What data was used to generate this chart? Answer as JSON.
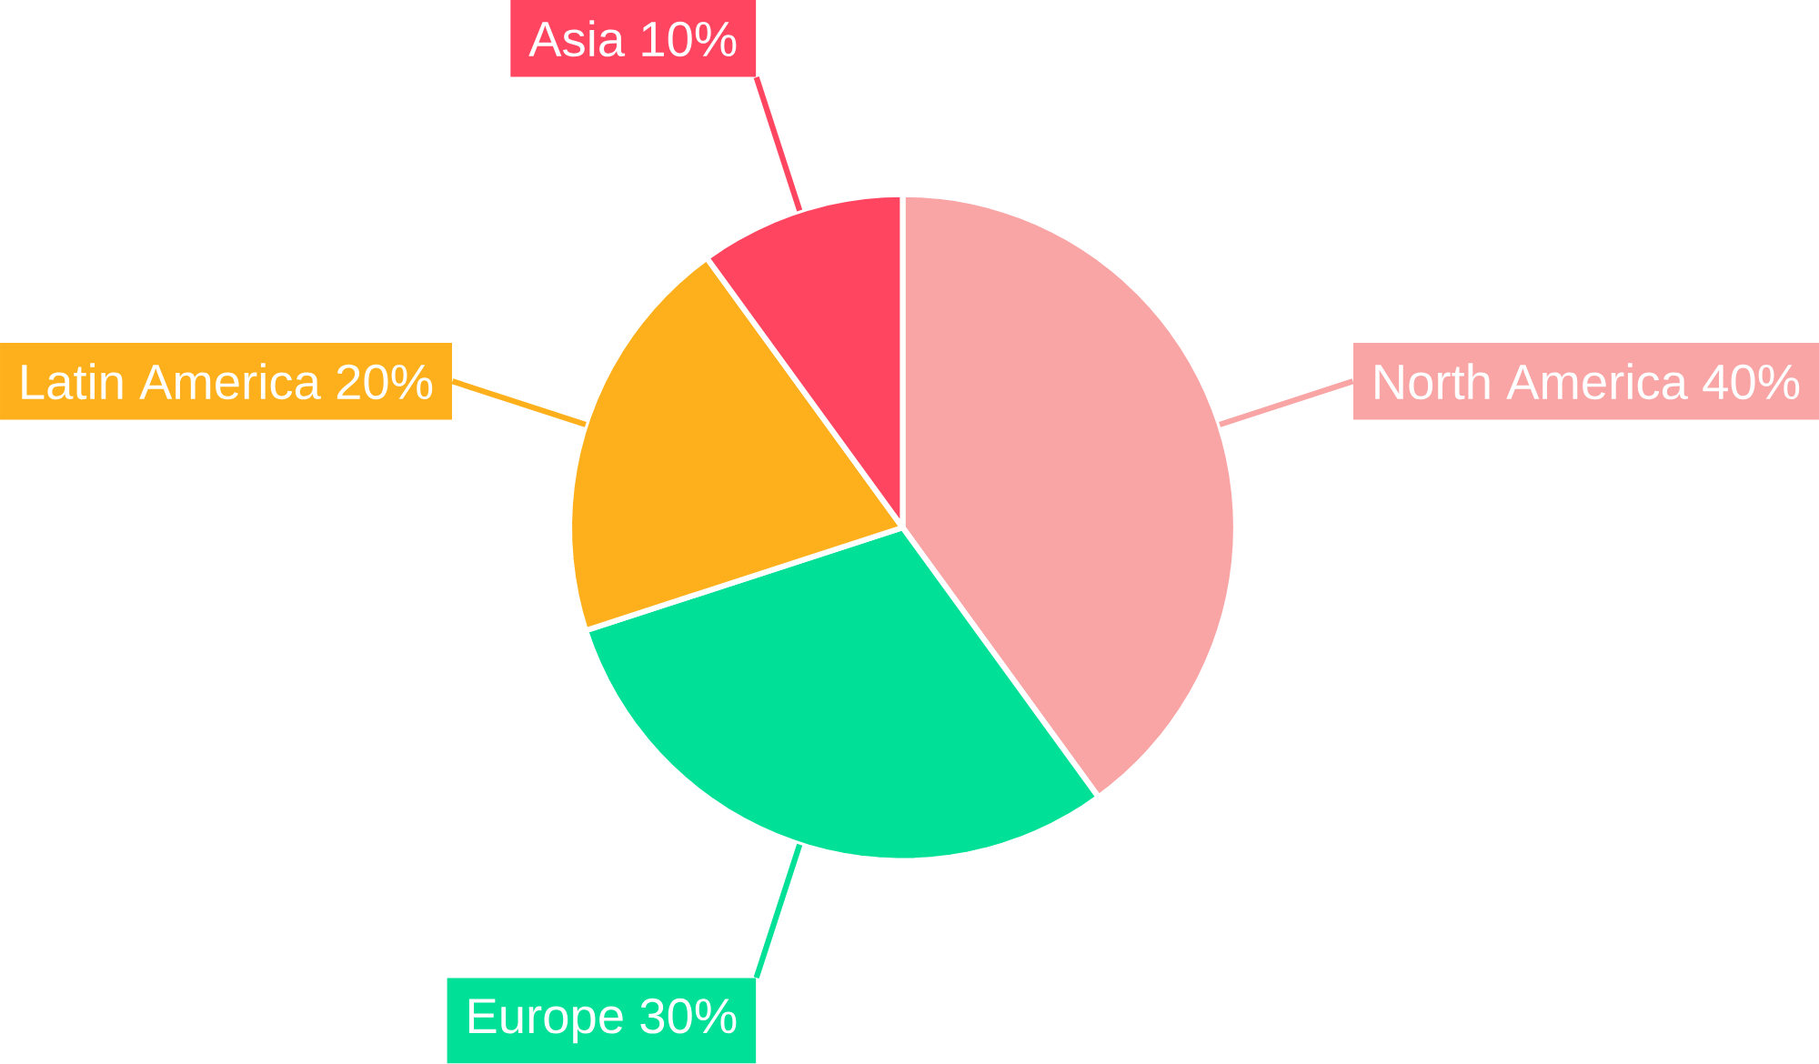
{
  "chart_data": {
    "type": "pie",
    "categories": [
      "North America",
      "Europe",
      "Latin America",
      "Asia"
    ],
    "values": [
      40,
      30,
      20,
      10
    ],
    "colors": [
      "#f9a5a5",
      "#00e096",
      "#fdb01b",
      "#ff4560"
    ],
    "value_labels": [
      "40%",
      "30%",
      "20%",
      "10%"
    ]
  }
}
